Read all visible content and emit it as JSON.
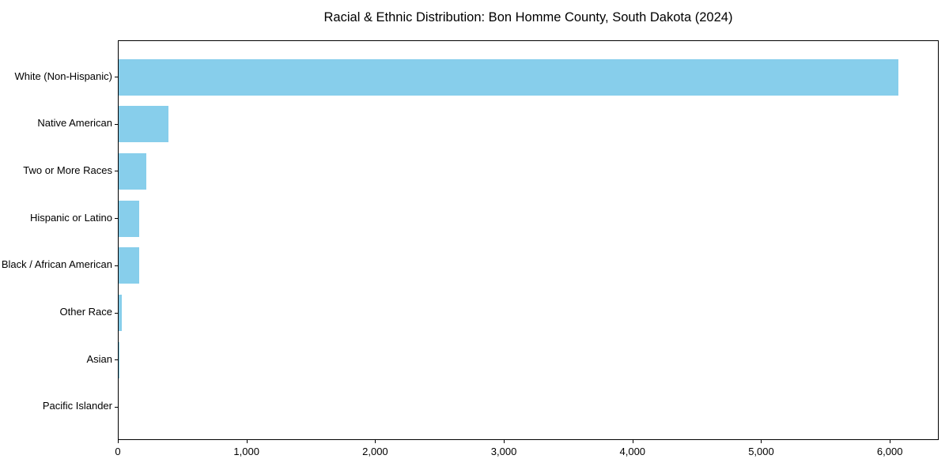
{
  "chart_data": {
    "type": "bar",
    "orientation": "horizontal",
    "title": "Racial & Ethnic Distribution: Bon Homme County, South Dakota (2024)",
    "categories": [
      "White (Non-Hispanic)",
      "Native American",
      "Two or More Races",
      "Hispanic or Latino",
      "Black / African American",
      "Other Race",
      "Asian",
      "Pacific Islander"
    ],
    "values": [
      6070,
      385,
      215,
      162,
      160,
      25,
      6,
      0
    ],
    "xlabel": "",
    "ylabel": "",
    "xlim": [
      0,
      6380
    ],
    "x_ticks": [
      0,
      1000,
      2000,
      3000,
      4000,
      5000,
      6000
    ],
    "x_tick_labels": [
      "0",
      "1,000",
      "2,000",
      "3,000",
      "4,000",
      "5,000",
      "6,000"
    ],
    "bar_color": "#87CEEB",
    "background_color": "#ffffff",
    "spine_color": "#000000",
    "grid": false,
    "legend": null
  }
}
